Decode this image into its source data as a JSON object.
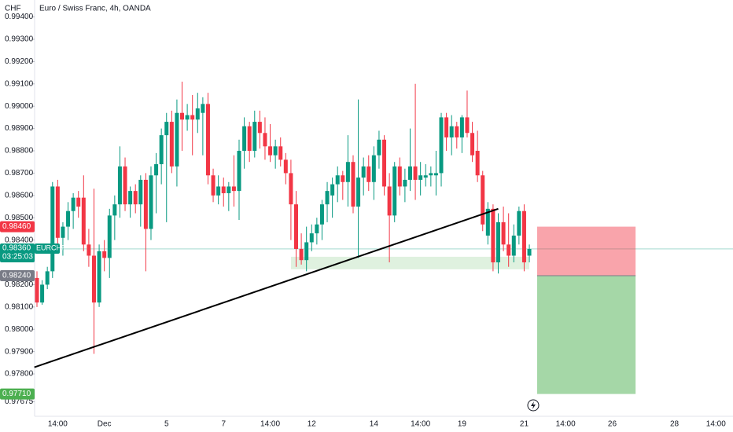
{
  "chart_data": {
    "type": "candlestick",
    "title": "Euro / Swiss Franc, 4h, OANDA",
    "y_unit": "CHF",
    "up_color": "#089981",
    "down_color": "#f23645",
    "categories": [
      null,
      null,
      null,
      null,
      "14:00",
      null,
      null,
      null,
      null,
      null,
      null,
      null,
      null,
      "Dec",
      null,
      null,
      null,
      null,
      null,
      null,
      null,
      null,
      null,
      null,
      null,
      "5",
      null,
      null,
      null,
      null,
      null,
      null,
      null,
      null,
      null,
      null,
      "7",
      null,
      null,
      null,
      null,
      null,
      null,
      null,
      null,
      "14:00",
      null,
      null,
      null,
      null,
      null,
      null,
      null,
      "12",
      null,
      null,
      null,
      null,
      null,
      null,
      null,
      null,
      null,
      null,
      null,
      "14",
      null,
      null,
      null,
      null,
      null,
      null,
      null,
      null,
      "14:00",
      null,
      null,
      null,
      null,
      null,
      null,
      null,
      "19",
      null,
      null,
      null,
      null,
      null,
      null,
      null,
      null,
      null,
      null,
      null,
      "21",
      null,
      null,
      null,
      null,
      null,
      null,
      null,
      "14:00",
      null,
      null,
      null,
      null,
      null,
      null,
      null,
      null,
      "26",
      null,
      null,
      null,
      null,
      null,
      null,
      null,
      null,
      null,
      null,
      null,
      "28",
      null,
      null,
      null,
      null,
      null,
      null,
      null,
      "14:00",
      null,
      null
    ],
    "open": [
      0.9823,
      0.9812,
      0.982,
      0.9826,
      0.9864,
      0.9841,
      0.9846,
      0.9853,
      0.9859,
      0.9859,
      0.9838,
      0.9833,
      0.9812,
      0.9835,
      0.9832,
      0.9851,
      0.9856,
      0.9873,
      0.9856,
      0.9862,
      0.9856,
      0.9867,
      0.9845,
      0.9869,
      0.9874,
      0.9887,
      0.9893,
      0.9873,
      0.9897,
      0.9894,
      0.9896,
      0.9894,
      0.9897,
      0.9901,
      0.9869,
      0.986,
      0.9864,
      0.9861,
      0.9864,
      0.9862,
      0.988,
      0.9891,
      0.988,
      0.9893,
      0.9888,
      0.9882,
      0.9878,
      0.9882,
      0.9876,
      0.987,
      0.9856,
      0.9836,
      0.9831,
      0.9839,
      0.9843,
      0.9847,
      0.9856,
      0.986,
      0.9865,
      0.9869,
      0.9866,
      0.9875,
      0.9855,
      0.9868,
      0.9873,
      0.9866,
      0.9878,
      0.9885,
      0.9864,
      0.9851,
      0.9873,
      0.9864,
      0.9867,
      0.9873,
      0.9867,
      0.9868,
      0.9869,
      0.9869,
      0.987,
      0.9895,
      0.9886,
      0.9891,
      0.9886,
      0.9895,
      0.9888,
      0.988,
      0.9869,
      0.9842,
      0.9854,
      0.983,
      0.9848,
      0.9838,
      0.9833,
      0.9842,
      0.9853,
      0.9833,
      null,
      null,
      null,
      null,
      null,
      null,
      null,
      null,
      null,
      null,
      null,
      null,
      null,
      null,
      null,
      null,
      null,
      null,
      null,
      null,
      null,
      null,
      null,
      null,
      null,
      null,
      null,
      null,
      null,
      null,
      null,
      null,
      null,
      null,
      null,
      null,
      null,
      null
    ],
    "high": [
      0.9826,
      0.9822,
      0.9828,
      0.9866,
      0.9867,
      0.9848,
      0.9857,
      0.9861,
      0.9862,
      0.9869,
      0.9845,
      0.9863,
      0.9838,
      0.984,
      0.9854,
      0.986,
      0.9882,
      0.9877,
      0.9864,
      0.9865,
      0.9869,
      0.987,
      0.9873,
      0.9879,
      0.989,
      0.9897,
      0.9898,
      0.9903,
      0.9911,
      0.9901,
      0.9905,
      0.9906,
      0.9904,
      0.9906,
      0.9872,
      0.9869,
      0.9868,
      0.9866,
      0.9878,
      0.9885,
      0.9895,
      0.9893,
      0.9898,
      0.9898,
      0.9895,
      0.9892,
      0.9885,
      0.9886,
      0.9879,
      0.9876,
      0.9862,
      0.9843,
      0.9846,
      0.9847,
      0.985,
      0.9858,
      0.9866,
      0.9868,
      0.9873,
      0.9871,
      0.9887,
      0.9878,
      0.9903,
      0.9877,
      0.9878,
      0.9882,
      0.9889,
      0.9887,
      0.987,
      0.9875,
      0.9877,
      0.9872,
      0.989,
      0.991,
      0.9875,
      0.9874,
      0.9873,
      0.988,
      0.9897,
      0.9897,
      0.9896,
      0.9893,
      0.9896,
      0.9907,
      0.9893,
      0.9889,
      0.9871,
      0.9857,
      0.9856,
      0.9852,
      0.9855,
      0.9852,
      0.9847,
      0.9855,
      0.9856,
      0.9838,
      null,
      null,
      null,
      null,
      null,
      null,
      null,
      null,
      null,
      null,
      null,
      null,
      null,
      null,
      null,
      null,
      null,
      null,
      null,
      null,
      null,
      null,
      null,
      null,
      null,
      null,
      null,
      null,
      null,
      null,
      null,
      null,
      null,
      null,
      null,
      null,
      null,
      null
    ],
    "low": [
      0.981,
      0.9811,
      0.9818,
      0.9823,
      0.9838,
      0.9833,
      0.984,
      0.9845,
      0.985,
      0.9835,
      0.9828,
      0.9789,
      0.981,
      0.9826,
      0.9823,
      0.984,
      0.985,
      0.9853,
      0.985,
      0.9852,
      0.9846,
      0.9826,
      0.984,
      0.9852,
      0.9865,
      0.9848,
      0.987,
      0.9864,
      0.988,
      0.9889,
      0.9878,
      0.9888,
      0.9878,
      0.9865,
      0.9857,
      0.9856,
      0.9855,
      0.9853,
      0.9855,
      0.9849,
      0.9872,
      0.9875,
      0.9877,
      0.9881,
      0.9876,
      0.9875,
      0.9872,
      0.9873,
      0.9865,
      0.984,
      0.9828,
      0.9829,
      0.9826,
      0.9835,
      0.9838,
      0.984,
      0.9848,
      0.985,
      0.9857,
      0.9858,
      0.9855,
      0.9852,
      0.9832,
      0.986,
      0.9862,
      0.9858,
      0.9872,
      0.986,
      0.983,
      0.9848,
      0.986,
      0.9857,
      0.9862,
      0.9858,
      0.986,
      0.9864,
      0.9864,
      0.986,
      0.9864,
      0.988,
      0.9878,
      0.9881,
      0.9879,
      0.9886,
      0.9875,
      0.9866,
      0.9844,
      0.9838,
      0.9826,
      0.9825,
      0.9835,
      0.9828,
      0.983,
      0.9838,
      0.9826,
      0.983,
      null,
      null,
      null,
      null,
      null,
      null,
      null,
      null,
      null,
      null,
      null,
      null,
      null,
      null,
      null,
      null,
      null,
      null,
      null,
      null,
      null,
      null,
      null,
      null,
      null,
      null,
      null,
      null,
      null,
      null,
      null,
      null,
      null,
      null,
      null,
      null,
      null,
      null
    ],
    "close": [
      0.9812,
      0.982,
      0.9826,
      0.9864,
      0.9841,
      0.9846,
      0.9853,
      0.9859,
      0.9855,
      0.9838,
      0.9833,
      0.9812,
      0.9835,
      0.9832,
      0.9851,
      0.9856,
      0.9873,
      0.9856,
      0.9862,
      0.9856,
      0.9867,
      0.9845,
      0.9869,
      0.9874,
      0.9887,
      0.9893,
      0.9873,
      0.9897,
      0.9894,
      0.9896,
      0.9894,
      0.9899,
      0.9901,
      0.9869,
      0.986,
      0.9864,
      0.9861,
      0.9864,
      0.9862,
      0.988,
      0.9891,
      0.988,
      0.9893,
      0.9888,
      0.9882,
      0.9878,
      0.9882,
      0.9876,
      0.987,
      0.9856,
      0.9836,
      0.9831,
      0.9839,
      0.9843,
      0.9847,
      0.9856,
      0.9862,
      0.9865,
      0.9869,
      0.9866,
      0.9875,
      0.9855,
      0.9868,
      0.9873,
      0.9866,
      0.9878,
      0.9885,
      0.9864,
      0.9851,
      0.9873,
      0.9864,
      0.9867,
      0.9873,
      0.9867,
      0.9869,
      0.9869,
      0.987,
      0.987,
      0.9895,
      0.9886,
      0.9891,
      0.9886,
      0.9895,
      0.9888,
      0.9878,
      0.9869,
      0.9847,
      0.9854,
      0.983,
      0.9848,
      0.9838,
      0.9833,
      0.9842,
      0.9853,
      0.983,
      0.9836,
      null,
      null,
      null,
      null,
      null,
      null,
      null,
      null,
      null,
      null,
      null,
      null,
      null,
      null,
      null,
      null,
      null,
      null,
      null,
      null,
      null,
      null,
      null,
      null,
      null,
      null,
      null,
      null,
      null,
      null,
      null,
      null,
      null,
      null,
      null,
      null,
      null,
      null
    ],
    "ylim": [
      0.9761,
      0.99476
    ],
    "yticks": [
      {
        "value": 0.97675,
        "label": "0.97675"
      },
      {
        "value": 0.978,
        "label": "0.97800"
      },
      {
        "value": 0.979,
        "label": "0.97900"
      },
      {
        "value": 0.98,
        "label": "0.98000"
      },
      {
        "value": 0.981,
        "label": "0.98100"
      },
      {
        "value": 0.982,
        "label": "0.98200"
      },
      {
        "value": 0.984,
        "label": "0.98400"
      },
      {
        "value": 0.985,
        "label": "0.98500"
      },
      {
        "value": 0.986,
        "label": "0.98600"
      },
      {
        "value": 0.987,
        "label": "0.98700"
      },
      {
        "value": 0.988,
        "label": "0.98800"
      },
      {
        "value": 0.989,
        "label": "0.98900"
      },
      {
        "value": 0.99,
        "label": "0.99000"
      },
      {
        "value": 0.991,
        "label": "0.99100"
      },
      {
        "value": 0.992,
        "label": "0.99200"
      },
      {
        "value": 0.993,
        "label": "0.99300"
      },
      {
        "value": 0.994,
        "label": "0.99400"
      }
    ],
    "trendline": {
      "x": [
        -0.5,
        89
      ],
      "y": [
        0.9783,
        0.9854
      ]
    },
    "support_zone": {
      "x": [
        49,
        95
      ],
      "top": 0.98325,
      "bottom": 0.98269
    },
    "position": {
      "x": [
        96.5,
        115.5
      ],
      "stop": {
        "value": 0.9846,
        "label": "0.98460"
      },
      "entry": {
        "value": 0.9824,
        "label": "0.98240"
      },
      "target": {
        "value": 0.9771,
        "label": "0.97710"
      }
    },
    "current_price": {
      "value": 0.9836,
      "label": "0.98360",
      "symbol": "EURCHF",
      "countdown": "03:25:03"
    }
  }
}
